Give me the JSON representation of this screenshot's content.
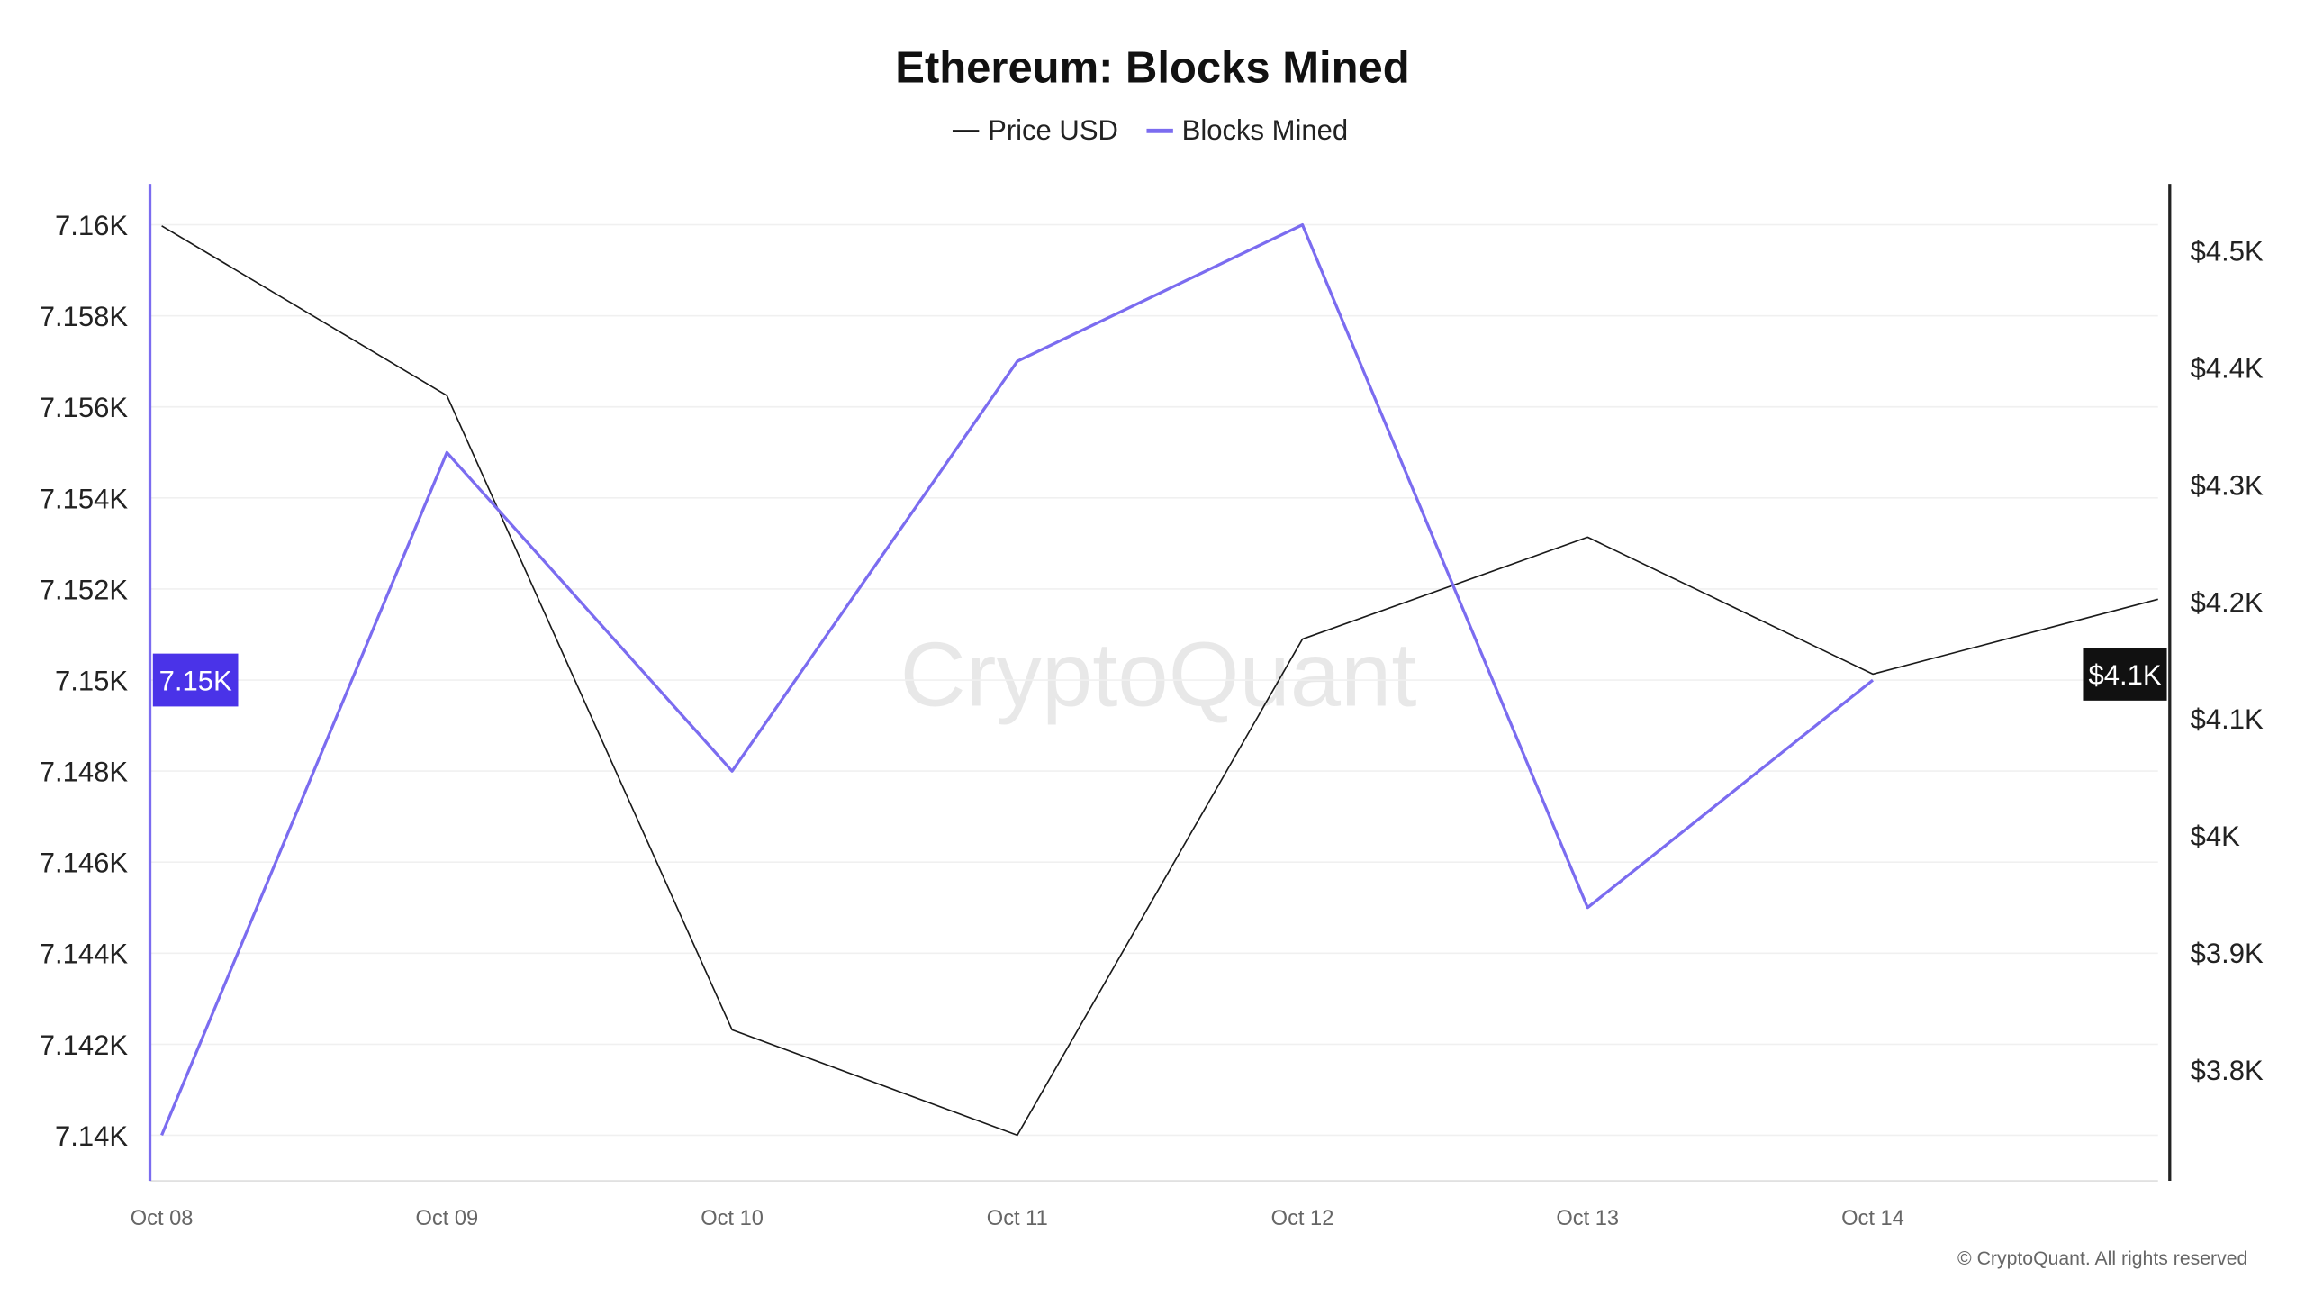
{
  "chart_data": {
    "type": "line",
    "title": "Ethereum: Blocks Mined",
    "legend": [
      "Price USD",
      "Blocks Mined"
    ],
    "legend_position": "top-center",
    "categories": [
      "Oct 08",
      "Oct 09",
      "Oct 10",
      "Oct 11",
      "Oct 12",
      "Oct 13",
      "Oct 14"
    ],
    "series": [
      {
        "name": "Price USD",
        "axis": "right",
        "color": "#1a1a1a",
        "x": [
          0,
          1,
          2,
          3,
          4,
          5,
          6,
          7
        ],
        "values": [
          4521,
          4376,
          3834,
          3744,
          4168,
          4255,
          4138,
          4202
        ]
      },
      {
        "name": "Blocks Mined",
        "axis": "left",
        "color": "#7b6cf0",
        "x": [
          0,
          1,
          2,
          3,
          4,
          5,
          6
        ],
        "values": [
          7140,
          7155,
          7148,
          7157,
          7160,
          7145,
          7150
        ]
      }
    ],
    "left_axis": {
      "ticks": [
        "7.14K",
        "7.142K",
        "7.144K",
        "7.146K",
        "7.148K",
        "7.15K",
        "7.152K",
        "7.154K",
        "7.156K",
        "7.158K",
        "7.16K"
      ],
      "tick_values": [
        7140,
        7142,
        7144,
        7146,
        7148,
        7150,
        7152,
        7154,
        7156,
        7158,
        7160
      ],
      "range": [
        7139,
        7160.9
      ],
      "highlight": "7.15K",
      "highlight_value": 7150,
      "highlight_color": "#4a33e8"
    },
    "right_axis": {
      "ticks": [
        "$3.8K",
        "$3.9K",
        "$4K",
        "$4.1K",
        "$4.2K",
        "$4.3K",
        "$4.4K",
        "$4.5K"
      ],
      "tick_values": [
        3800,
        3900,
        4000,
        4100,
        4200,
        4300,
        4400,
        4500
      ],
      "range": [
        3705,
        4557
      ],
      "highlight": "$4.1K",
      "highlight_value": 4138,
      "highlight_color": "#111111"
    },
    "x_range": [
      0,
      7
    ],
    "grid": true,
    "watermark": "CryptoQuant",
    "copyright": "© CryptoQuant. All rights reserved"
  }
}
